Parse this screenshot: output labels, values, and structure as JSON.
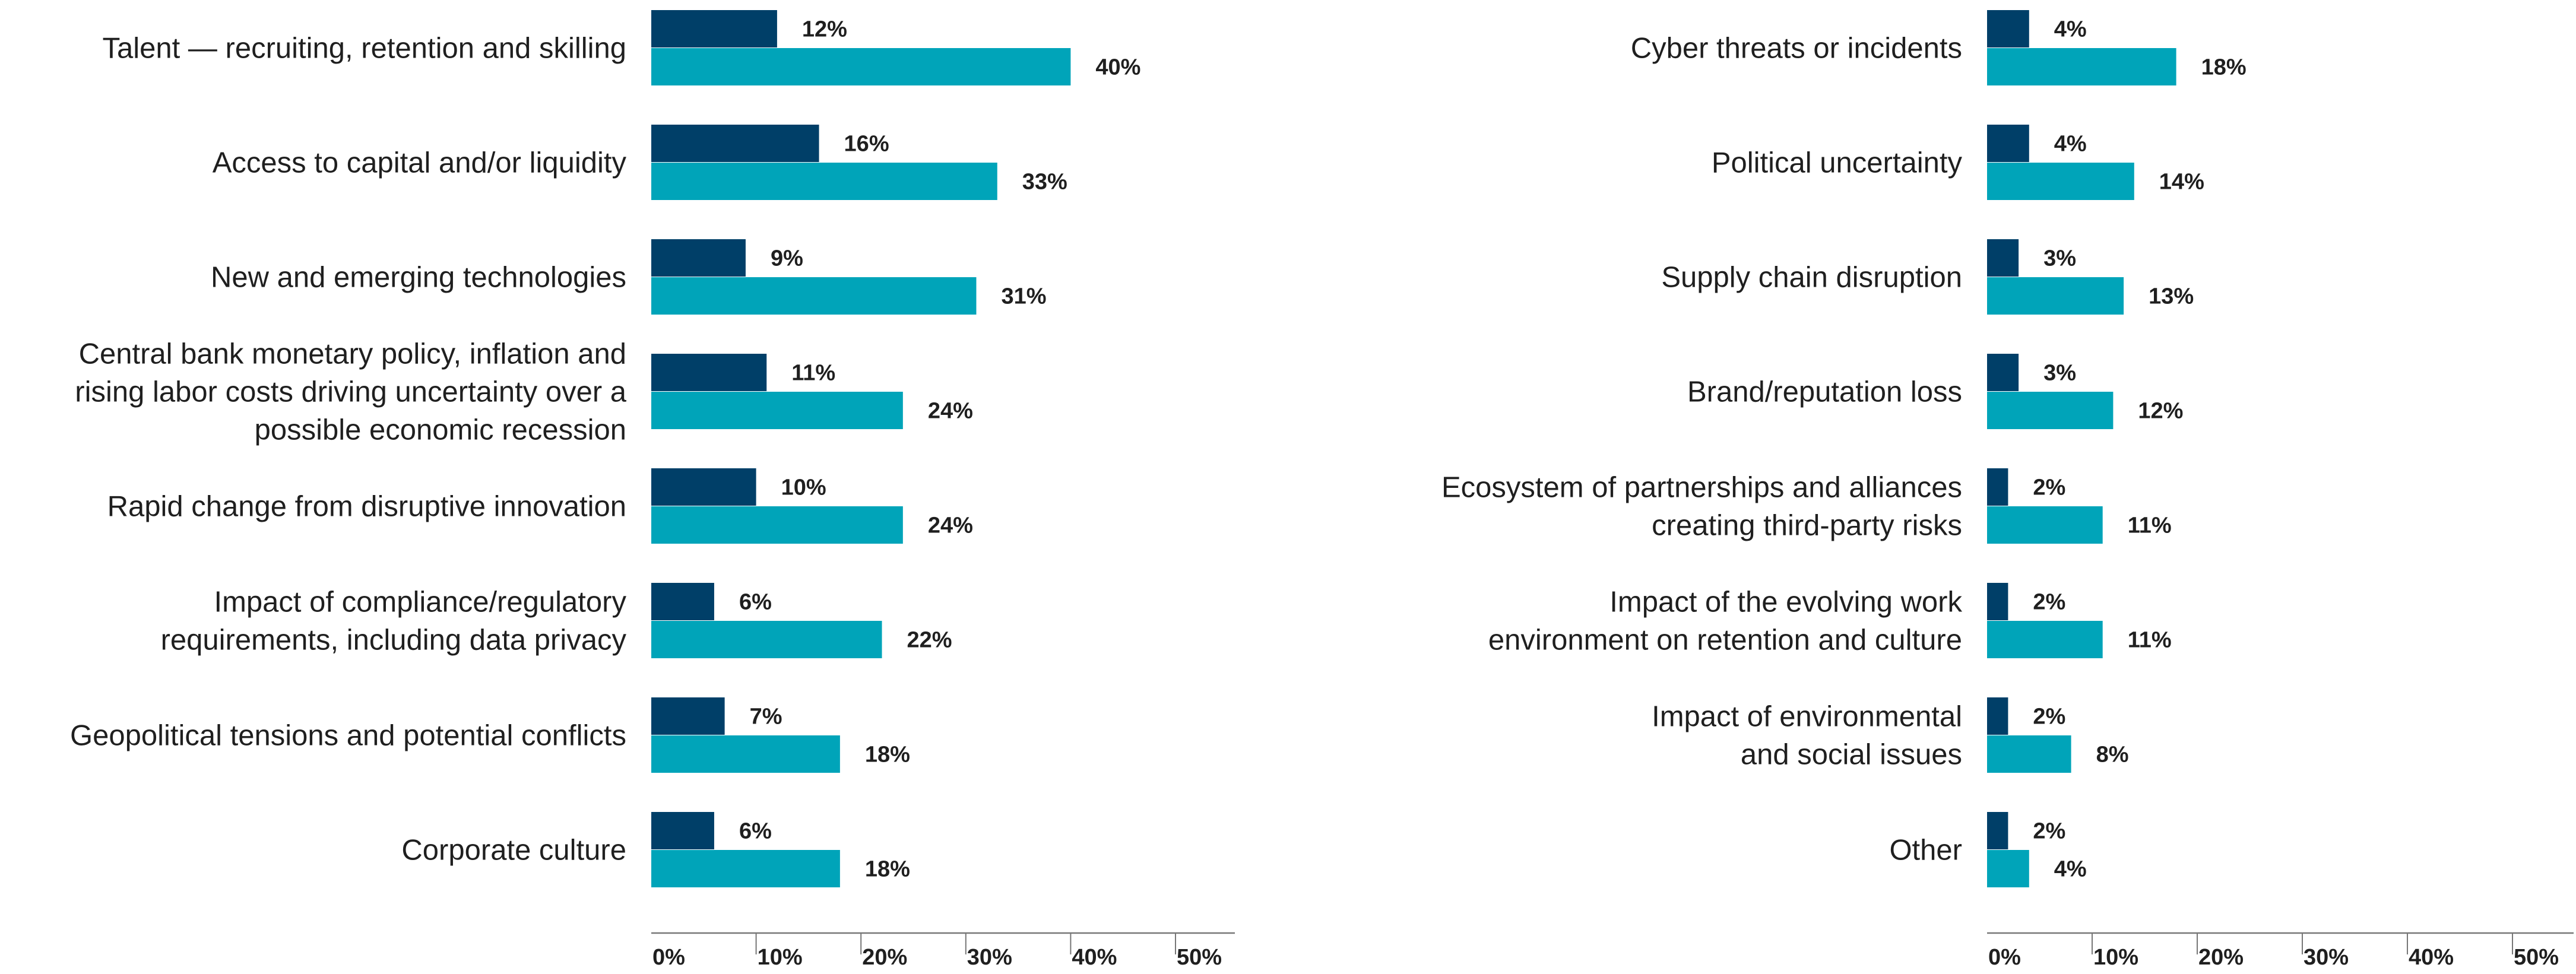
{
  "colors": {
    "series_dark": "#003f68",
    "series_light": "#00a4b9"
  },
  "chart_data": [
    {
      "type": "bar",
      "orientation": "horizontal",
      "categories": [
        "Talent — recruiting, retention and skilling",
        "Access to capital and/or liquidity",
        "New and emerging technologies",
        "Central bank monetary policy, inflation and rising labor costs driving uncertainty over a possible economic recession",
        "Rapid change from disruptive innovation",
        "Impact of compliance/regulatory requirements, including data privacy",
        "Geopolitical tensions and potential conflicts",
        "Corporate culture"
      ],
      "category_lines": [
        [
          "Talent — recruiting, retention and skilling"
        ],
        [
          "Access to capital and/or liquidity"
        ],
        [
          "New and emerging technologies"
        ],
        [
          "Central bank monetary policy, inflation and",
          "rising labor costs driving uncertainty over a",
          "possible economic recession"
        ],
        [
          "Rapid change from disruptive innovation"
        ],
        [
          "Impact of compliance/regulatory",
          "requirements, including data privacy"
        ],
        [
          "Geopolitical tensions and potential conflicts"
        ],
        [
          "Corporate culture"
        ]
      ],
      "series": [
        {
          "color": "#003f68",
          "values": [
            12,
            16,
            9,
            11,
            10,
            6,
            7,
            6
          ],
          "labels": [
            "12%",
            "16%",
            "9%",
            "11%",
            "10%",
            "6%",
            "7%",
            "6%"
          ]
        },
        {
          "color": "#00a4b9",
          "values": [
            40,
            33,
            31,
            24,
            24,
            22,
            18,
            18
          ],
          "labels": [
            "40%",
            "33%",
            "31%",
            "24%",
            "24%",
            "22%",
            "18%",
            "18%"
          ]
        }
      ],
      "xlim": [
        0,
        50
      ],
      "xticks": [
        0,
        10,
        20,
        30,
        40,
        50
      ],
      "xtick_labels": [
        "0%",
        "10%",
        "20%",
        "30%",
        "40%",
        "50%"
      ]
    },
    {
      "type": "bar",
      "orientation": "horizontal",
      "categories": [
        "Cyber threats or incidents",
        "Political uncertainty",
        "Supply chain disruption",
        "Brand/reputation loss",
        "Ecosystem of partnerships and alliances creating third-party risks",
        "Impact of the evolving work environment on retention and culture",
        "Impact of environmental and social issues",
        "Other"
      ],
      "category_lines": [
        [
          "Cyber threats or incidents"
        ],
        [
          "Political uncertainty"
        ],
        [
          "Supply chain disruption"
        ],
        [
          "Brand/reputation loss"
        ],
        [
          "Ecosystem of partnerships and alliances",
          "creating third-party risks"
        ],
        [
          "Impact of the evolving work",
          "environment on retention and culture"
        ],
        [
          "Impact of environmental",
          "and social issues"
        ],
        [
          "Other"
        ]
      ],
      "series": [
        {
          "color": "#003f68",
          "values": [
            4,
            4,
            3,
            3,
            2,
            2,
            2,
            2
          ],
          "labels": [
            "4%",
            "4%",
            "3%",
            "3%",
            "2%",
            "2%",
            "2%",
            "2%"
          ]
        },
        {
          "color": "#00a4b9",
          "values": [
            18,
            14,
            13,
            12,
            11,
            11,
            8,
            4
          ],
          "labels": [
            "18%",
            "14%",
            "13%",
            "12%",
            "11%",
            "11%",
            "8%",
            "4%"
          ]
        }
      ],
      "xlim": [
        0,
        50
      ],
      "xticks": [
        0,
        10,
        20,
        30,
        40,
        50
      ],
      "xtick_labels": [
        "0%",
        "10%",
        "20%",
        "30%",
        "40%",
        "50%"
      ]
    }
  ]
}
